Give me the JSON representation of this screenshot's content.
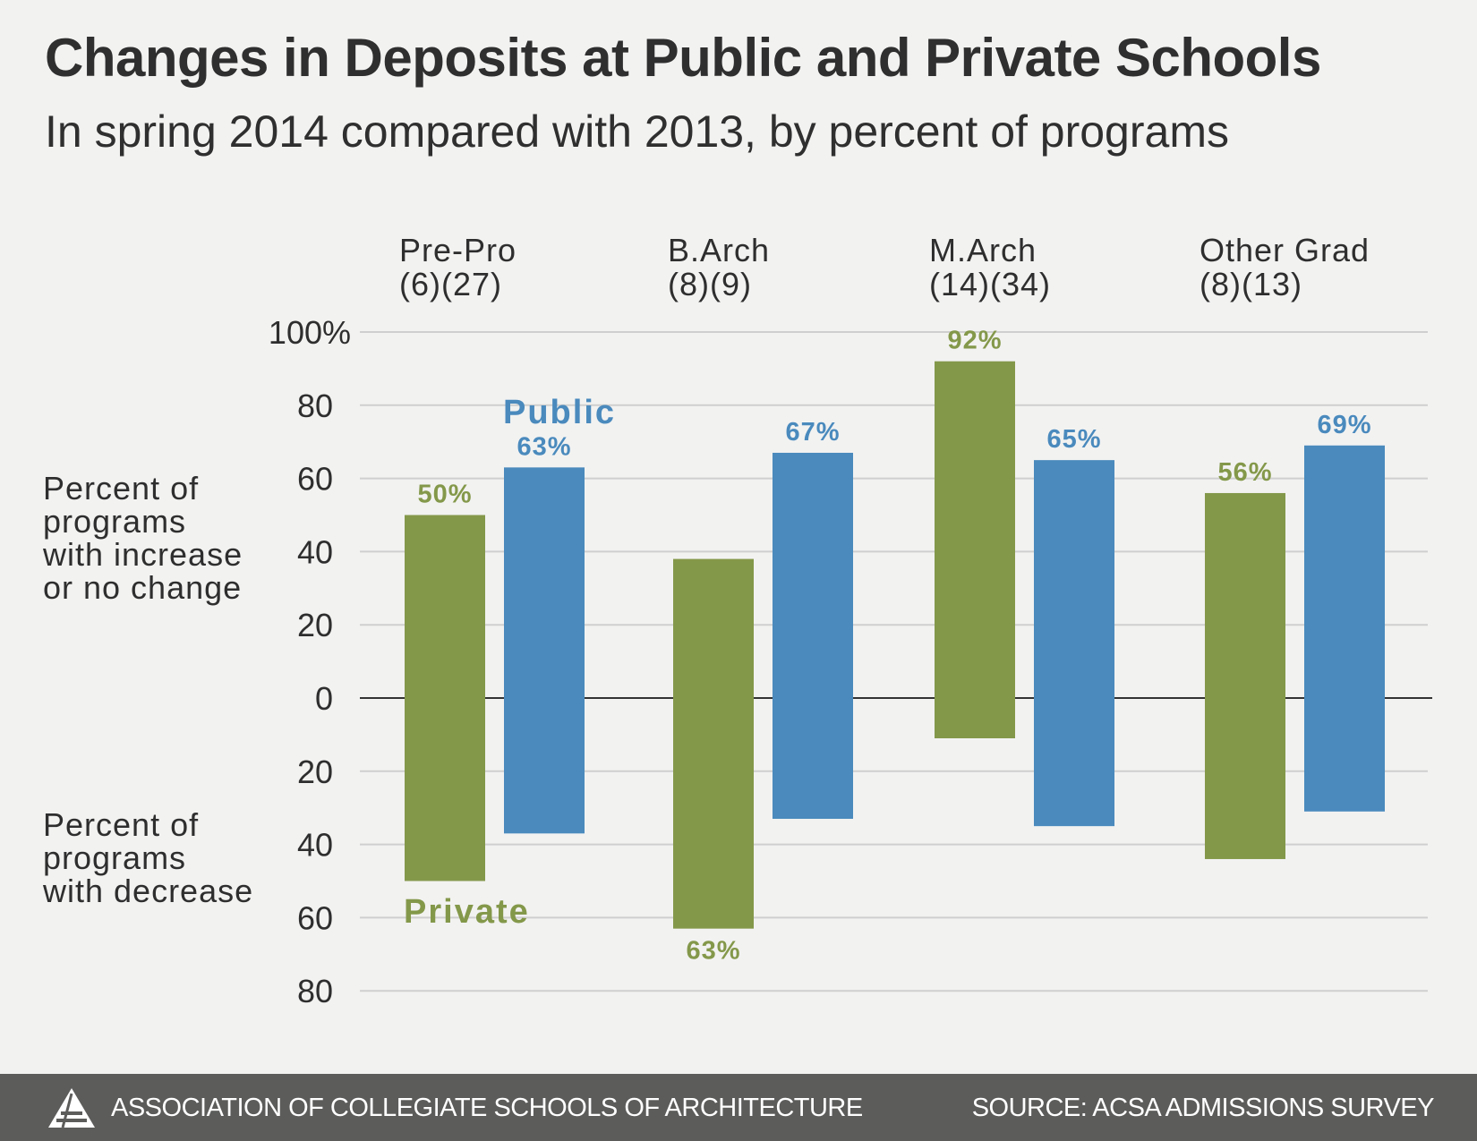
{
  "header": {
    "title": "Changes in Deposits at Public and Private Schools",
    "subtitle": "In spring 2014 compared with 2013, by percent of programs"
  },
  "footer": {
    "organization": "ASSOCIATION OF COLLEGIATE SCHOOLS OF ARCHITECTURE",
    "source": "SOURCE: ACSA ADMISSIONS SURVEY",
    "logo_icon": "acsa-triangle-logo-icon"
  },
  "colors": {
    "private": "#84984a",
    "public": "#4a8abd",
    "grid": "#cfcfcf",
    "zero_line": "#333333",
    "text": "#2e2e2e"
  },
  "chart_data": {
    "type": "bar",
    "title": "Changes in Deposits at Public and Private Schools",
    "subtitle": "In spring 2014 compared with 2013, by percent of programs",
    "categories": [
      "Pre-Pro",
      "B.Arch",
      "M.Arch",
      "Other Grad"
    ],
    "category_counts": [
      "(6)(27)",
      "(8)(9)",
      "(14)(34)",
      "(8)(13)"
    ],
    "y_ticks": [
      "100%",
      "80",
      "60",
      "40",
      "20",
      "0",
      "20",
      "40",
      "60",
      "80"
    ],
    "y_tick_values": [
      100,
      80,
      60,
      40,
      20,
      0,
      -20,
      -40,
      -60,
      -80
    ],
    "ylim": [
      -80,
      100
    ],
    "grid": true,
    "ylabel_upper": [
      "Percent of",
      "programs",
      "with increase",
      "or no change"
    ],
    "ylabel_lower": [
      "Percent of",
      "programs",
      "with decrease"
    ],
    "series": [
      {
        "name": "Private",
        "increase_or_no_change": [
          50,
          38,
          92,
          56
        ],
        "decrease": [
          50,
          63,
          11,
          44
        ],
        "increase_labels": [
          "50%",
          "",
          "92%",
          "56%"
        ],
        "decrease_labels": [
          "",
          "63%",
          "",
          ""
        ]
      },
      {
        "name": "Public",
        "increase_or_no_change": [
          63,
          67,
          65,
          69
        ],
        "decrease": [
          37,
          33,
          35,
          31
        ],
        "increase_labels": [
          "63%",
          "67%",
          "65%",
          "69%"
        ],
        "decrease_labels": [
          "",
          "",
          "",
          ""
        ]
      }
    ],
    "legend": {
      "public_label": "Public",
      "private_label": "Private"
    }
  }
}
